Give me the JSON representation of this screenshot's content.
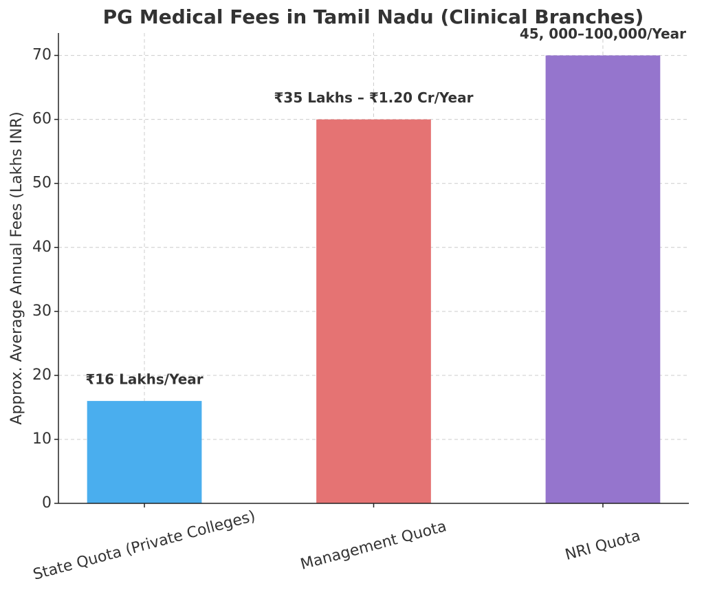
{
  "chart_data": {
    "type": "bar",
    "title": "PG Medical Fees in Tamil Nadu (Clinical Branches)",
    "y_label": "Approx. Average Annual Fees (Lakhs INR)",
    "categories": [
      "State Quota (Private Colleges)",
      "Management Quota",
      "NRI Quota"
    ],
    "values": [
      16,
      60,
      70
    ],
    "value_labels": [
      "₹16 Lakhs/Year",
      "₹35 Lakhs – ₹1.20 Cr/Year",
      "45, 000–100,000/Year"
    ],
    "colors": [
      "#4aaeee",
      "#e57373",
      "#9575cd"
    ],
    "ylim": [
      0,
      73.5
    ],
    "yticks": [
      0,
      10,
      20,
      30,
      40,
      50,
      60,
      70
    ],
    "grid": true
  }
}
